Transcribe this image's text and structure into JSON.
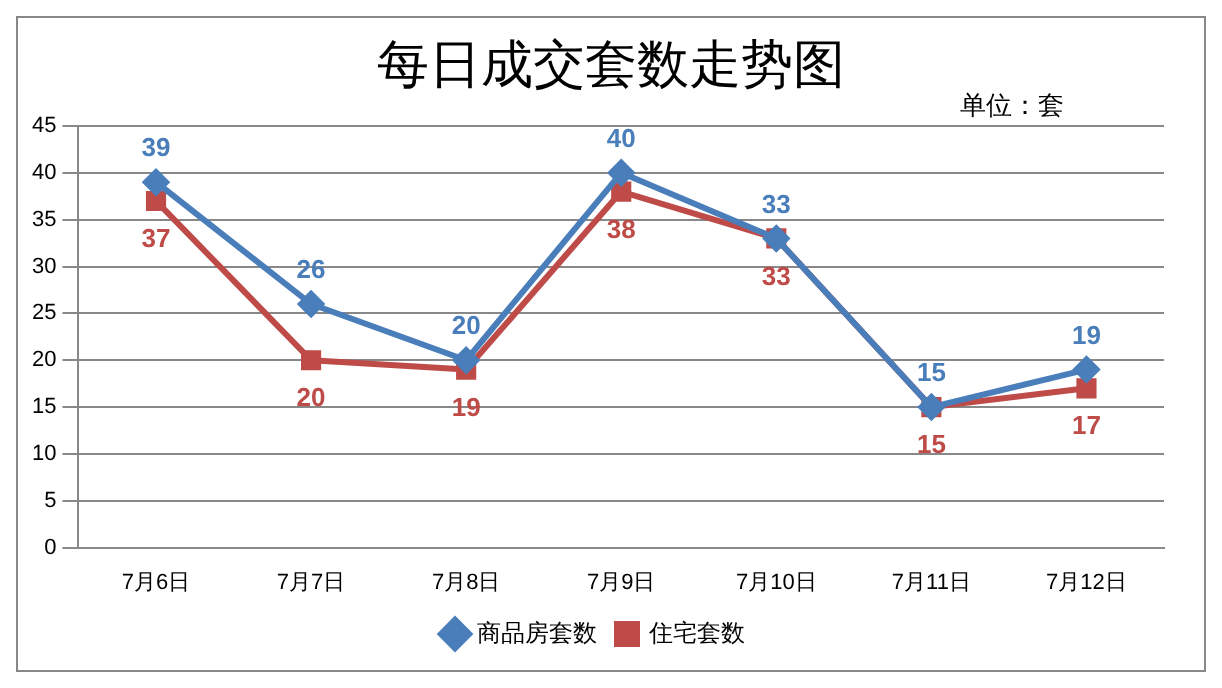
{
  "chart_data": {
    "type": "line",
    "title": "每日成交套数走势图",
    "annotations": [
      "单位：套"
    ],
    "categories": [
      "7月6日",
      "7月7日",
      "7月8日",
      "7月9日",
      "7月10日",
      "7月11日",
      "7月12日"
    ],
    "series": [
      {
        "name": "商品房套数",
        "color": "#4a7ebb",
        "marker": "diamond",
        "values": [
          39,
          26,
          20,
          40,
          33,
          15,
          19
        ]
      },
      {
        "name": "住宅套数",
        "color": "#be4b48",
        "marker": "square",
        "values": [
          37,
          20,
          19,
          38,
          33,
          15,
          17
        ]
      }
    ],
    "ylim": [
      0,
      45
    ],
    "yticks": [
      0,
      5,
      10,
      15,
      20,
      25,
      30,
      35,
      40,
      45
    ],
    "grid": "y",
    "legend": "bottom",
    "data_labels": true,
    "line_style": "solid"
  }
}
